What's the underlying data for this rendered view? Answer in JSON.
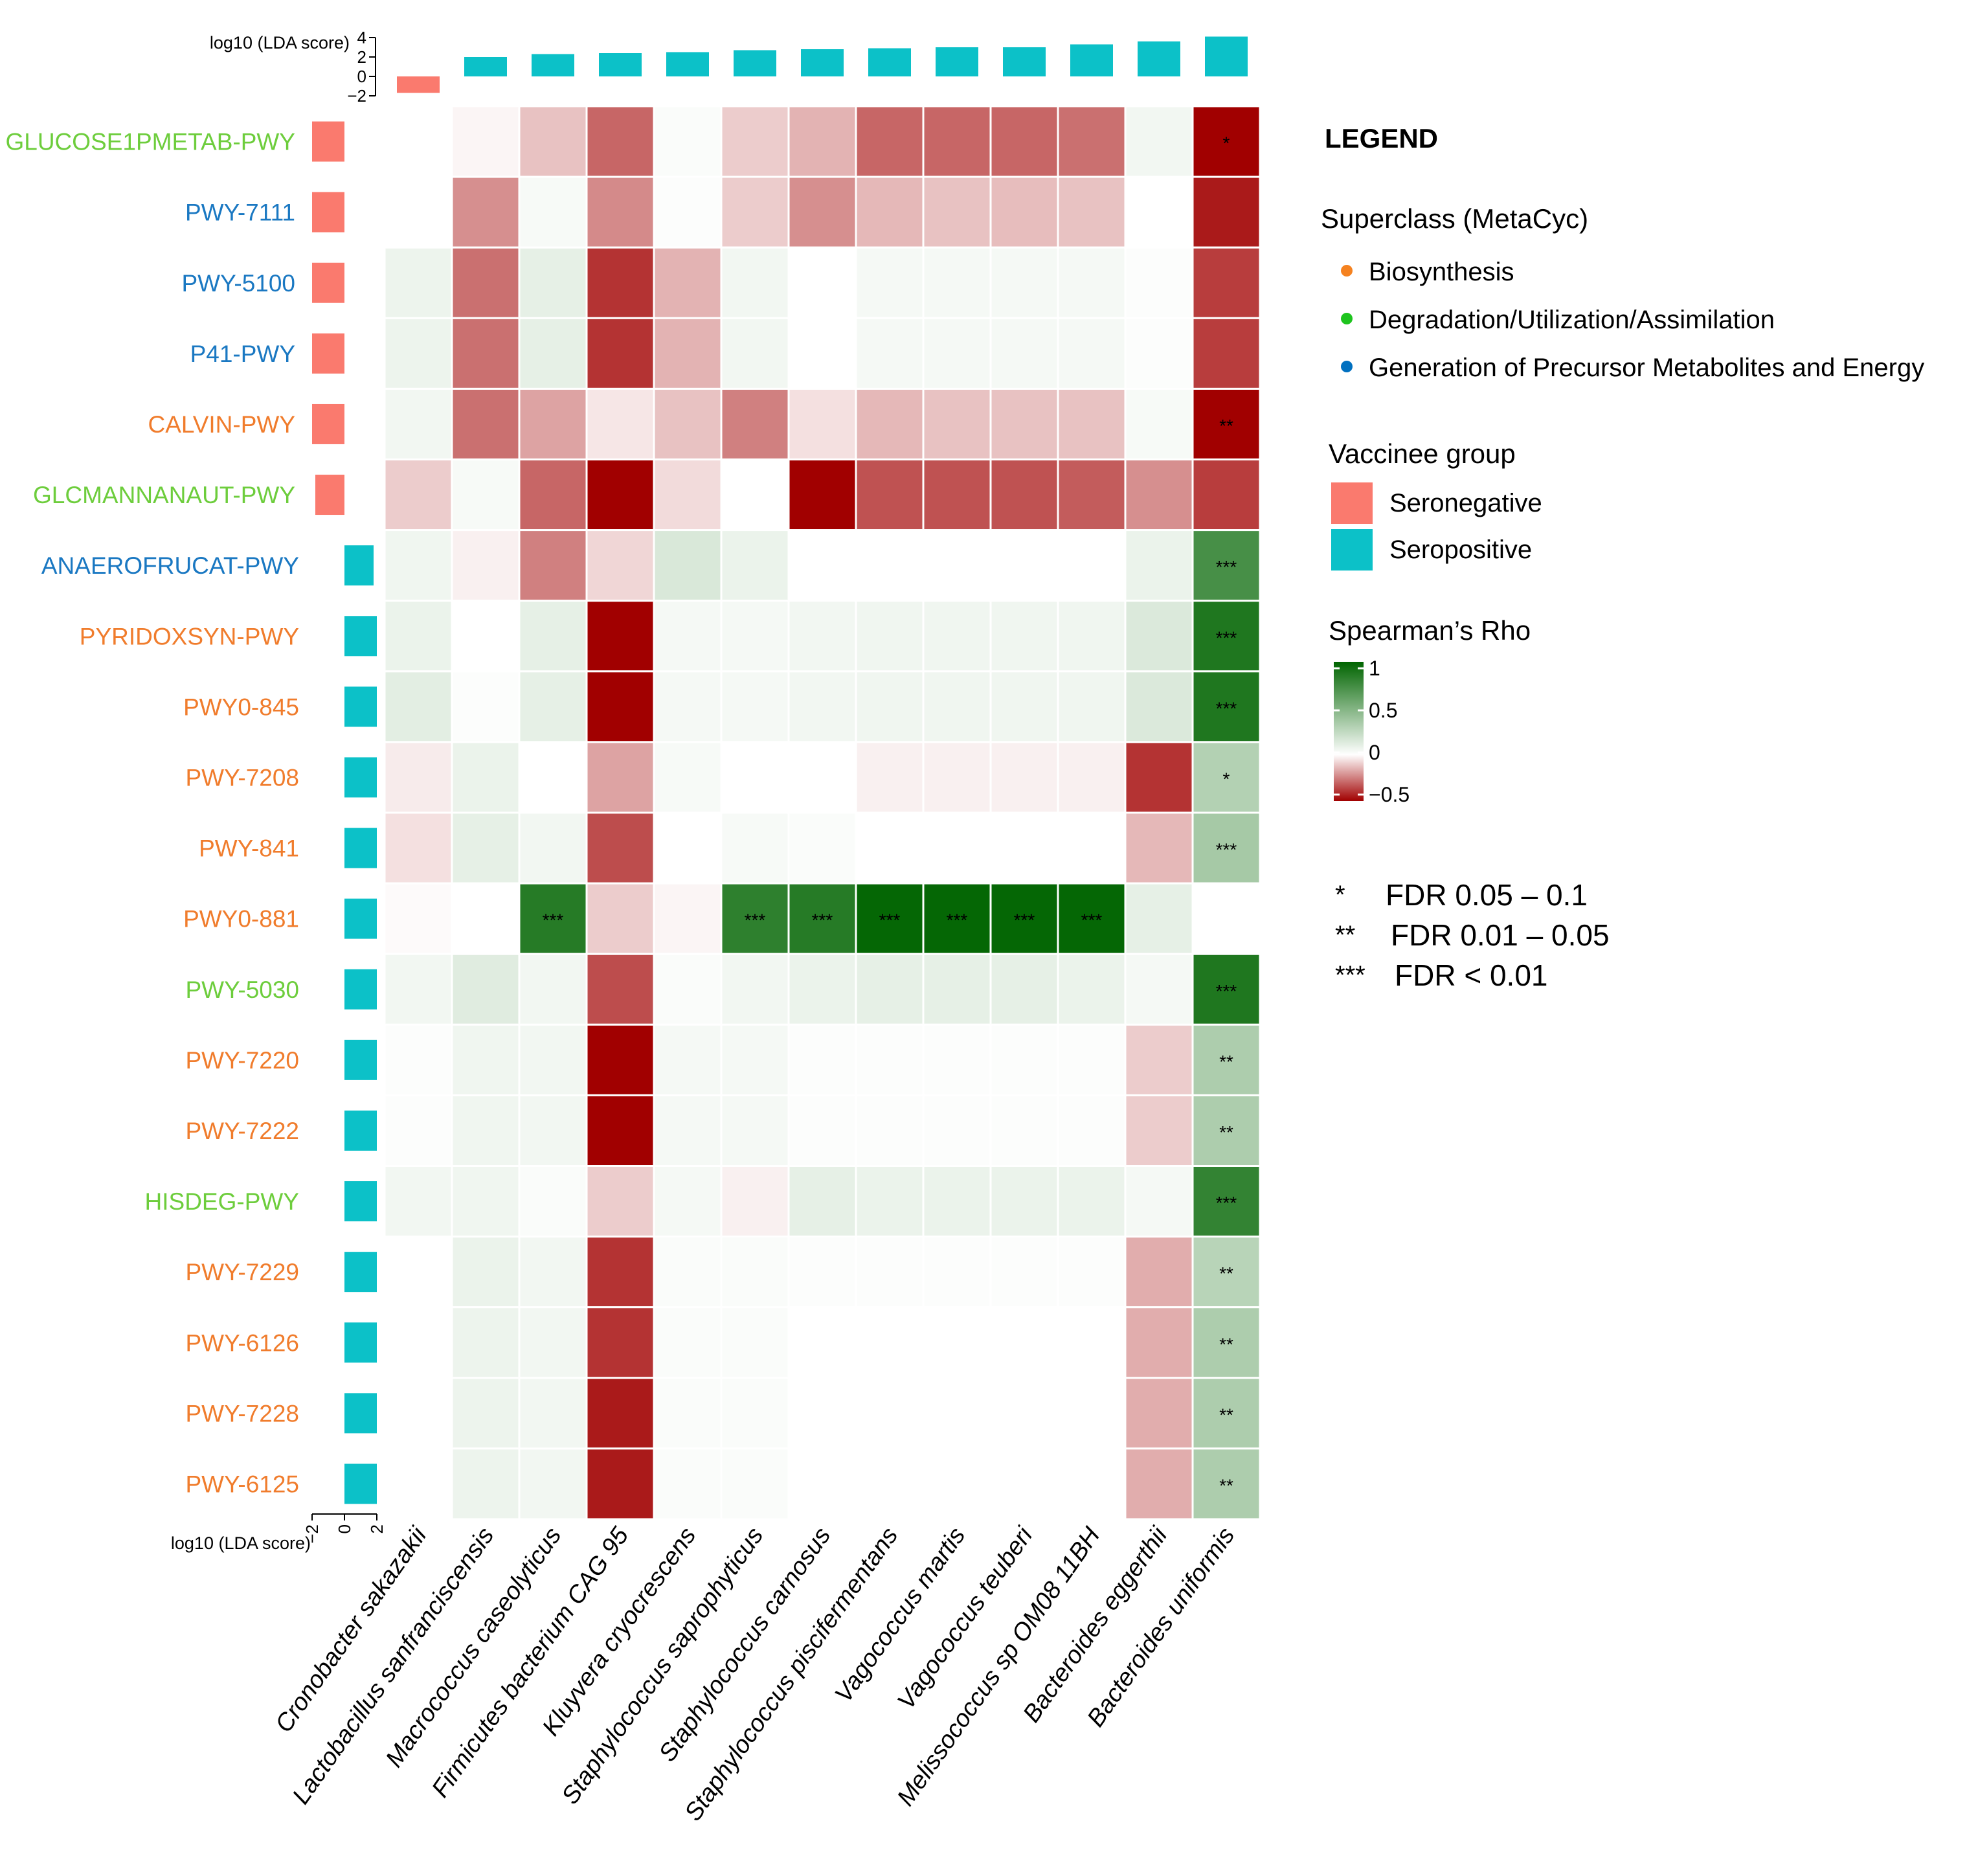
{
  "chart_data": {
    "type": "heatmap",
    "value_label": "Spearman’s Rho",
    "top_axis_label": "log10 (LDA score)",
    "left_axis_label": "log10 (LDA score)",
    "top_axis_ticks": [
      "4",
      "2",
      "0",
      "−2"
    ],
    "left_axis_ticks": [
      "−2",
      "0",
      "2"
    ],
    "columns": [
      {
        "name": "Cronobacter sakazakii",
        "lda": -1.7,
        "group": "Seronegative"
      },
      {
        "name": "Lactobacillus sanfranciscensis",
        "lda": 2.0,
        "group": "Seropositive"
      },
      {
        "name": "Macrococcus caseolyticus",
        "lda": 2.3,
        "group": "Seropositive"
      },
      {
        "name": "Firmicutes bacterium CAG 95",
        "lda": 2.4,
        "group": "Seropositive"
      },
      {
        "name": "Kluyvera cryocrescens",
        "lda": 2.5,
        "group": "Seropositive"
      },
      {
        "name": "Staphylococcus saprophyticus",
        "lda": 2.7,
        "group": "Seropositive"
      },
      {
        "name": "Staphylococcus carnosus",
        "lda": 2.8,
        "group": "Seropositive"
      },
      {
        "name": "Staphylococcus piscifermentans",
        "lda": 2.9,
        "group": "Seropositive"
      },
      {
        "name": "Vagococcus martis",
        "lda": 3.0,
        "group": "Seropositive"
      },
      {
        "name": "Vagococcus teuberi",
        "lda": 3.0,
        "group": "Seropositive"
      },
      {
        "name": "Melissococcus sp OM08 11BH",
        "lda": 3.3,
        "group": "Seropositive"
      },
      {
        "name": "Bacteroides eggerthii",
        "lda": 3.6,
        "group": "Seropositive"
      },
      {
        "name": "Bacteroides uniformis",
        "lda": 4.1,
        "group": "Seropositive"
      }
    ],
    "rows": [
      {
        "name": "GLUCOSE1PMETAB-PWY",
        "superclass": "Degradation/Utilization/Assimilation",
        "lda": -2.0,
        "group": "Seronegative"
      },
      {
        "name": "PWY-7111",
        "superclass": "Generation of Precursor Metabolites and Energy",
        "lda": -2.0,
        "group": "Seronegative"
      },
      {
        "name": "PWY-5100",
        "superclass": "Generation of Precursor Metabolites and Energy",
        "lda": -2.0,
        "group": "Seronegative"
      },
      {
        "name": "P41-PWY",
        "superclass": "Generation of Precursor Metabolites and Energy",
        "lda": -2.0,
        "group": "Seronegative"
      },
      {
        "name": "CALVIN-PWY",
        "superclass": "Biosynthesis",
        "lda": -2.0,
        "group": "Seronegative"
      },
      {
        "name": "GLCMANNANAUT-PWY",
        "superclass": "Degradation/Utilization/Assimilation",
        "lda": -1.8,
        "group": "Seronegative"
      },
      {
        "name": "ANAEROFRUCAT-PWY",
        "superclass": "Generation of Precursor Metabolites and Energy",
        "lda": 1.8,
        "group": "Seropositive"
      },
      {
        "name": "PYRIDOXSYN-PWY",
        "superclass": "Biosynthesis",
        "lda": 2.0,
        "group": "Seropositive"
      },
      {
        "name": "PWY0-845",
        "superclass": "Biosynthesis",
        "lda": 2.0,
        "group": "Seropositive"
      },
      {
        "name": "PWY-7208",
        "superclass": "Biosynthesis",
        "lda": 2.0,
        "group": "Seropositive"
      },
      {
        "name": "PWY-841",
        "superclass": "Biosynthesis",
        "lda": 2.0,
        "group": "Seropositive"
      },
      {
        "name": "PWY0-881",
        "superclass": "Biosynthesis",
        "lda": 2.0,
        "group": "Seropositive"
      },
      {
        "name": "PWY-5030",
        "superclass": "Degradation/Utilization/Assimilation",
        "lda": 2.0,
        "group": "Seropositive"
      },
      {
        "name": "PWY-7220",
        "superclass": "Biosynthesis",
        "lda": 2.0,
        "group": "Seropositive"
      },
      {
        "name": "PWY-7222",
        "superclass": "Biosynthesis",
        "lda": 2.0,
        "group": "Seropositive"
      },
      {
        "name": "HISDEG-PWY",
        "superclass": "Degradation/Utilization/Assimilation",
        "lda": 2.0,
        "group": "Seropositive"
      },
      {
        "name": "PWY-7229",
        "superclass": "Biosynthesis",
        "lda": 2.0,
        "group": "Seropositive"
      },
      {
        "name": "PWY-6126",
        "superclass": "Biosynthesis",
        "lda": 2.0,
        "group": "Seropositive"
      },
      {
        "name": "PWY-7228",
        "superclass": "Biosynthesis",
        "lda": 2.0,
        "group": "Seropositive"
      },
      {
        "name": "PWY-6125",
        "superclass": "Biosynthesis",
        "lda": 2.0,
        "group": "Seropositive"
      }
    ],
    "values": [
      [
        0.0,
        -0.02,
        -0.12,
        -0.3,
        0.02,
        -0.1,
        -0.15,
        -0.3,
        -0.3,
        -0.3,
        -0.28,
        0.05,
        -0.62
      ],
      [
        0.0,
        -0.22,
        0.03,
        -0.23,
        0.01,
        -0.1,
        -0.22,
        -0.14,
        -0.12,
        -0.13,
        -0.12,
        0.0,
        -0.45
      ],
      [
        0.07,
        -0.28,
        0.1,
        -0.4,
        -0.15,
        0.05,
        0.0,
        0.04,
        0.04,
        0.04,
        0.04,
        0.01,
        -0.38
      ],
      [
        0.07,
        -0.28,
        0.1,
        -0.4,
        -0.15,
        0.05,
        0.0,
        0.04,
        0.04,
        0.04,
        0.04,
        0.01,
        -0.38
      ],
      [
        0.05,
        -0.28,
        -0.18,
        -0.05,
        -0.12,
        -0.25,
        -0.06,
        -0.14,
        -0.12,
        -0.12,
        -0.12,
        0.03,
        -0.75
      ],
      [
        -0.1,
        0.03,
        -0.3,
        -0.5,
        -0.07,
        0.0,
        -0.55,
        -0.34,
        -0.34,
        -0.34,
        -0.32,
        -0.22,
        -0.38
      ],
      [
        0.06,
        -0.03,
        -0.25,
        -0.08,
        0.15,
        0.08,
        0.0,
        0.0,
        0.0,
        0.0,
        0.0,
        0.08,
        0.72
      ],
      [
        0.08,
        0.0,
        0.1,
        -0.7,
        0.04,
        0.04,
        0.05,
        0.06,
        0.06,
        0.06,
        0.06,
        0.14,
        0.88
      ],
      [
        0.11,
        0.01,
        0.1,
        -0.7,
        0.04,
        0.04,
        0.05,
        0.06,
        0.06,
        0.06,
        0.06,
        0.14,
        0.88
      ],
      [
        -0.04,
        0.08,
        0.0,
        -0.18,
        0.03,
        0.0,
        0.0,
        -0.03,
        -0.03,
        -0.03,
        -0.03,
        -0.4,
        0.3
      ],
      [
        -0.06,
        0.1,
        0.05,
        -0.35,
        0.0,
        0.03,
        0.02,
        0.0,
        0.0,
        0.0,
        0.0,
        -0.14,
        0.35
      ],
      [
        -0.01,
        0.0,
        0.85,
        -0.1,
        -0.02,
        0.82,
        0.85,
        0.98,
        0.98,
        0.98,
        0.98,
        0.1,
        0.0
      ],
      [
        0.05,
        0.12,
        0.05,
        -0.35,
        0.02,
        0.05,
        0.08,
        0.1,
        0.1,
        0.1,
        0.08,
        0.04,
        0.88
      ],
      [
        0.01,
        0.06,
        0.05,
        -0.5,
        0.04,
        0.04,
        0.01,
        0.01,
        0.01,
        0.01,
        0.01,
        -0.1,
        0.32
      ],
      [
        0.01,
        0.06,
        0.05,
        -0.5,
        0.04,
        0.04,
        0.01,
        0.01,
        0.01,
        0.01,
        0.01,
        -0.1,
        0.32
      ],
      [
        0.05,
        0.06,
        0.02,
        -0.1,
        0.04,
        -0.03,
        0.1,
        0.08,
        0.08,
        0.08,
        0.08,
        0.04,
        0.8
      ],
      [
        0.0,
        0.08,
        0.05,
        -0.4,
        0.02,
        0.02,
        0.01,
        0.01,
        0.01,
        0.01,
        0.01,
        -0.16,
        0.28
      ],
      [
        0.0,
        0.07,
        0.05,
        -0.4,
        0.02,
        0.02,
        0.0,
        0.0,
        0.0,
        0.0,
        0.0,
        -0.16,
        0.32
      ],
      [
        0.0,
        0.07,
        0.05,
        -0.45,
        0.02,
        0.02,
        0.0,
        0.0,
        0.0,
        0.0,
        0.0,
        -0.16,
        0.32
      ],
      [
        0.0,
        0.07,
        0.05,
        -0.45,
        0.02,
        0.02,
        0.0,
        0.0,
        0.0,
        0.0,
        0.0,
        -0.16,
        0.32
      ]
    ],
    "significance": [
      [
        "",
        "",
        "",
        "",
        "",
        "",
        "",
        "",
        "",
        "",
        "",
        "",
        "*"
      ],
      [
        "",
        "",
        "",
        "",
        "",
        "",
        "",
        "",
        "",
        "",
        "",
        "",
        ""
      ],
      [
        "",
        "",
        "",
        "",
        "",
        "",
        "",
        "",
        "",
        "",
        "",
        "",
        ""
      ],
      [
        "",
        "",
        "",
        "",
        "",
        "",
        "",
        "",
        "",
        "",
        "",
        "",
        ""
      ],
      [
        "",
        "",
        "",
        "",
        "",
        "",
        "",
        "",
        "",
        "",
        "",
        "",
        "**"
      ],
      [
        "",
        "",
        "",
        "",
        "",
        "",
        "",
        "",
        "",
        "",
        "",
        "",
        ""
      ],
      [
        "",
        "",
        "",
        "",
        "",
        "",
        "",
        "",
        "",
        "",
        "",
        "",
        "***"
      ],
      [
        "",
        "",
        "",
        "",
        "",
        "",
        "",
        "",
        "",
        "",
        "",
        "",
        "***"
      ],
      [
        "",
        "",
        "",
        "",
        "",
        "",
        "",
        "",
        "",
        "",
        "",
        "",
        "***"
      ],
      [
        "",
        "",
        "",
        "",
        "",
        "",
        "",
        "",
        "",
        "",
        "",
        "",
        "*"
      ],
      [
        "",
        "",
        "",
        "",
        "",
        "",
        "",
        "",
        "",
        "",
        "",
        "",
        "***"
      ],
      [
        "",
        "",
        "***",
        "",
        "",
        "***",
        "***",
        "***",
        "***",
        "***",
        "***",
        "",
        ""
      ],
      [
        "",
        "",
        "",
        "",
        "",
        "",
        "",
        "",
        "",
        "",
        "",
        "",
        "***"
      ],
      [
        "",
        "",
        "",
        "",
        "",
        "",
        "",
        "",
        "",
        "",
        "",
        "",
        "**"
      ],
      [
        "",
        "",
        "",
        "",
        "",
        "",
        "",
        "",
        "",
        "",
        "",
        "",
        "**"
      ],
      [
        "",
        "",
        "",
        "",
        "",
        "",
        "",
        "",
        "",
        "",
        "",
        "",
        "***"
      ],
      [
        "",
        "",
        "",
        "",
        "",
        "",
        "",
        "",
        "",
        "",
        "",
        "",
        "**"
      ],
      [
        "",
        "",
        "",
        "",
        "",
        "",
        "",
        "",
        "",
        "",
        "",
        "",
        "**"
      ],
      [
        "",
        "",
        "",
        "",
        "",
        "",
        "",
        "",
        "",
        "",
        "",
        "",
        "**"
      ],
      [
        "",
        "",
        "",
        "",
        "",
        "",
        "",
        "",
        "",
        "",
        "",
        "",
        "**"
      ]
    ],
    "color_scale": {
      "min": -0.5,
      "max": 1,
      "low_color": "#a10000",
      "mid_color": "#ffffff",
      "high_color": "#006400",
      "ticks": [
        "1",
        "0.5",
        "0",
        "−0.5"
      ]
    }
  },
  "legend": {
    "title": "LEGEND",
    "superclass_title": "Superclass (MetaCyc)",
    "superclasses": [
      {
        "label": "Biosynthesis",
        "color": "#f58220"
      },
      {
        "label": "Degradation/Utilization/Assimilation",
        "color": "#1ec41e"
      },
      {
        "label": "Generation of Precursor Metabolites and Energy",
        "color": "#0070c0"
      }
    ],
    "superclass_text_colors": {
      "Biosynthesis": "#f07c2c",
      "Degradation/Utilization/Assimilation": "#6dcd3c",
      "Generation of Precursor Metabolites and Energy": "#1a78c2"
    },
    "group_title": "Vaccinee group",
    "groups": [
      {
        "label": "Seronegative",
        "color": "#fa7a6e"
      },
      {
        "label": "Seropositive",
        "color": "#0cc1c8"
      }
    ],
    "rho_title": "Spearman’s Rho",
    "fdr": [
      {
        "stars": "*",
        "label": "FDR 0.05 – 0.1"
      },
      {
        "stars": "**",
        "label": "FDR 0.01 – 0.05"
      },
      {
        "stars": "***",
        "label": "FDR < 0.01"
      }
    ]
  }
}
